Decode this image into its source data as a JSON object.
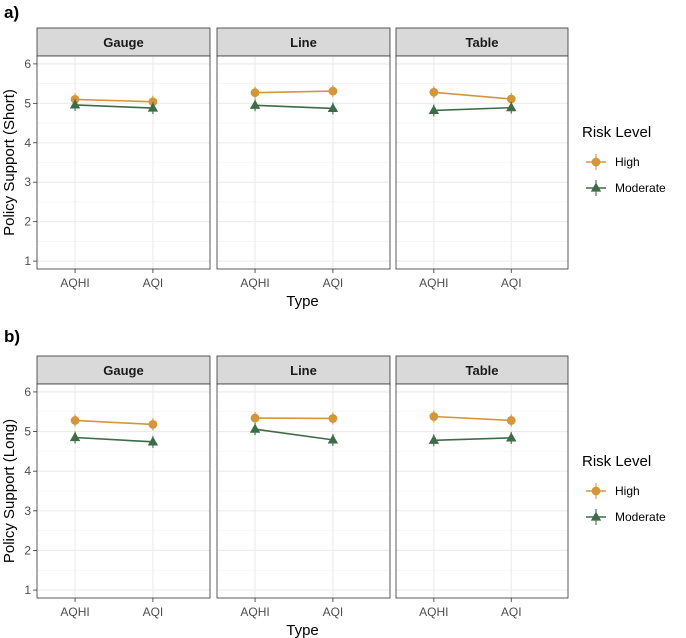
{
  "chart_data": [
    {
      "type": "line",
      "tag": "a)",
      "xlabel": "Type",
      "ylabel": "Policy Support (Short)",
      "ylim": [
        0.8,
        6.2
      ],
      "yticks": [
        1,
        2,
        3,
        4,
        5,
        6
      ],
      "categories": [
        "AQHI",
        "AQI"
      ],
      "legend": {
        "title": "Risk Level",
        "position": "right"
      },
      "facets": [
        {
          "label": "Gauge",
          "series": [
            {
              "name": "High",
              "values": [
                5.1,
                5.04
              ]
            },
            {
              "name": "Moderate",
              "values": [
                4.96,
                4.88
              ]
            }
          ]
        },
        {
          "label": "Line",
          "series": [
            {
              "name": "High",
              "values": [
                5.27,
                5.31
              ]
            },
            {
              "name": "Moderate",
              "values": [
                4.95,
                4.87
              ]
            }
          ]
        },
        {
          "label": "Table",
          "series": [
            {
              "name": "High",
              "values": [
                5.28,
                5.11
              ]
            },
            {
              "name": "Moderate",
              "values": [
                4.82,
                4.89
              ]
            }
          ]
        }
      ]
    },
    {
      "type": "line",
      "tag": "b)",
      "xlabel": "Type",
      "ylabel": "Policy Support (Long)",
      "ylim": [
        0.8,
        6.2
      ],
      "yticks": [
        1,
        2,
        3,
        4,
        5,
        6
      ],
      "categories": [
        "AQHI",
        "AQI"
      ],
      "legend": {
        "title": "Risk Level",
        "position": "right"
      },
      "facets": [
        {
          "label": "Gauge",
          "series": [
            {
              "name": "High",
              "values": [
                5.28,
                5.18
              ]
            },
            {
              "name": "Moderate",
              "values": [
                4.85,
                4.74
              ]
            }
          ]
        },
        {
          "label": "Line",
          "series": [
            {
              "name": "High",
              "values": [
                5.34,
                5.33
              ]
            },
            {
              "name": "Moderate",
              "values": [
                5.06,
                4.79
              ]
            }
          ]
        },
        {
          "label": "Table",
          "series": [
            {
              "name": "High",
              "values": [
                5.38,
                5.28
              ]
            },
            {
              "name": "Moderate",
              "values": [
                4.78,
                4.84
              ]
            }
          ]
        }
      ]
    }
  ],
  "colors": {
    "High": "#D4963A",
    "Moderate": "#3E6B48"
  }
}
